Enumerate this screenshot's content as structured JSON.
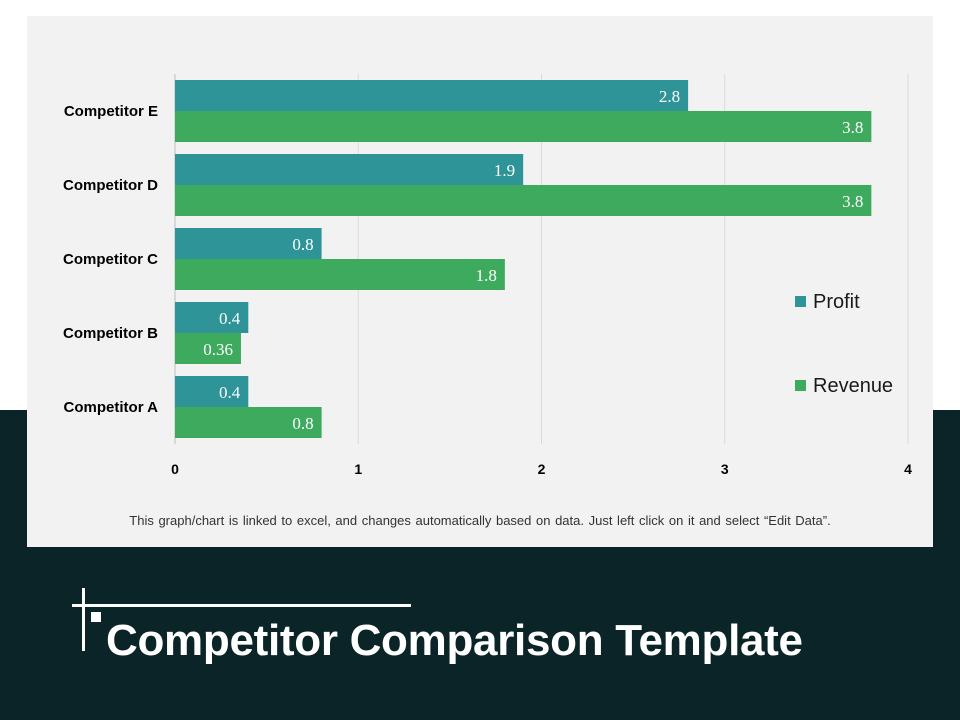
{
  "slide": {
    "title": "Competitor Comparison Template",
    "note": "This graph/chart is linked to excel, and changes automatically  based on data. Just left click on it and select “Edit Data”."
  },
  "colors": {
    "profit": "#2e9498",
    "revenue": "#3daa5e",
    "band": "#0b2428",
    "panel": "#f2f2f2"
  },
  "chart_data": {
    "type": "bar",
    "orientation": "horizontal",
    "title": "",
    "xlabel": "",
    "ylabel": "",
    "categories": [
      "Competitor A",
      "Competitor B",
      "Competitor C",
      "Competitor D",
      "Competitor E"
    ],
    "series": [
      {
        "name": "Profit",
        "values": [
          0.4,
          0.4,
          0.8,
          1.9,
          2.8
        ],
        "labels": [
          "0.4",
          "0.4",
          "0.8",
          "1.9",
          "2.8"
        ]
      },
      {
        "name": "Revenue",
        "values": [
          0.8,
          0.36,
          1.8,
          3.8,
          3.8
        ],
        "labels": [
          "0.8",
          "0.36",
          "1.8",
          "3.8",
          "3.8"
        ]
      }
    ],
    "xlim": [
      0,
      4
    ],
    "xticks": [
      "0",
      "1",
      "2",
      "3",
      "4"
    ],
    "grid": true,
    "legend_position": "right"
  }
}
